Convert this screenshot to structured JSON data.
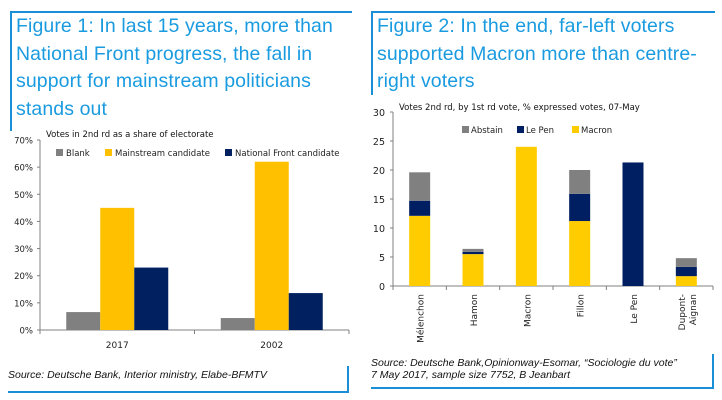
{
  "colors": {
    "frame_blue": "#1a8fd6",
    "gray": "#808080",
    "yellow": "#ffc000",
    "navy": "#002060",
    "yellow2": "#ffcc00",
    "navy2": "#001e62"
  },
  "figure1": {
    "title": "Figure 1: In last 15 years, more than National Front progress, the fall in support for mainstream politicians stands out",
    "title_lines": [
      "Figure 1: In last 15 years, more than",
      "National Front progress, the fall in",
      "support for mainstream politicians",
      "stands out"
    ],
    "source": "Source: Deutsche Bank, Interior ministry, Elabe-BFMTV"
  },
  "figure2": {
    "title": "Figure 2: In the end, far-left voters supported Macron more than centre-right voters",
    "title_lines": [
      "Figure 2: In the end, far-left voters",
      "supported Macron more than centre-",
      "right voters"
    ],
    "source_lines": [
      "Source: Deutsche Bank,Opinionway-Esomar, “Sociologie du vote”",
      "7 May 2017, sample size 7752, B Jeanbart"
    ]
  },
  "chart_data": [
    {
      "type": "bar",
      "title": "Votes in 2nd rd as a share of electorate",
      "xlabel": "",
      "ylabel": "",
      "categories": [
        "2017",
        "2002"
      ],
      "series": [
        {
          "name": "Blank",
          "color": "#808080",
          "values": [
            6.6,
            4.4
          ]
        },
        {
          "name": "Mainstream candidate",
          "color": "#ffc000",
          "values": [
            45,
            62
          ]
        },
        {
          "name": "National Front candidate",
          "color": "#002060",
          "values": [
            23,
            13.6
          ]
        }
      ],
      "ylim": [
        0,
        70
      ],
      "yticks": [
        0,
        10,
        20,
        30,
        40,
        50,
        60,
        70
      ],
      "ytick_labels": [
        "0%",
        "10%",
        "20%",
        "30%",
        "40%",
        "50%",
        "60%",
        "70%"
      ],
      "legend_position": "top",
      "grid": false
    },
    {
      "type": "bar",
      "stacked": true,
      "title": "Votes 2nd rd, by 1st rd vote, % expressed votes, 07-May",
      "xlabel": "",
      "ylabel": "",
      "categories": [
        "Mélenchon",
        "Hamon",
        "Macron",
        "Fillon",
        "Le Pen",
        "Dupont-Aignan"
      ],
      "category_label_lines": [
        [
          "Mélenchon"
        ],
        [
          "Hamon"
        ],
        [
          "Macron"
        ],
        [
          "Fillon"
        ],
        [
          "Le Pen"
        ],
        [
          "Dupont-",
          "Aignan"
        ]
      ],
      "series": [
        {
          "name": "Macron",
          "color": "#ffcc00",
          "values": [
            12.1,
            5.5,
            24.0,
            11.2,
            0,
            1.7
          ]
        },
        {
          "name": "Le Pen",
          "color": "#001e62",
          "values": [
            2.6,
            0.4,
            0,
            4.7,
            21.3,
            1.6
          ]
        },
        {
          "name": "Abstain",
          "color": "#808080",
          "values": [
            4.9,
            0.5,
            0,
            4.1,
            0,
            1.5
          ]
        }
      ],
      "legend_order": [
        "Abstain",
        "Le Pen",
        "Macron"
      ],
      "ylim": [
        0,
        30
      ],
      "yticks": [
        0,
        5,
        10,
        15,
        20,
        25,
        30
      ],
      "ytick_labels": [
        "0",
        "5",
        "10",
        "15",
        "20",
        "25",
        "30"
      ],
      "legend_position": "top",
      "grid": false
    }
  ]
}
